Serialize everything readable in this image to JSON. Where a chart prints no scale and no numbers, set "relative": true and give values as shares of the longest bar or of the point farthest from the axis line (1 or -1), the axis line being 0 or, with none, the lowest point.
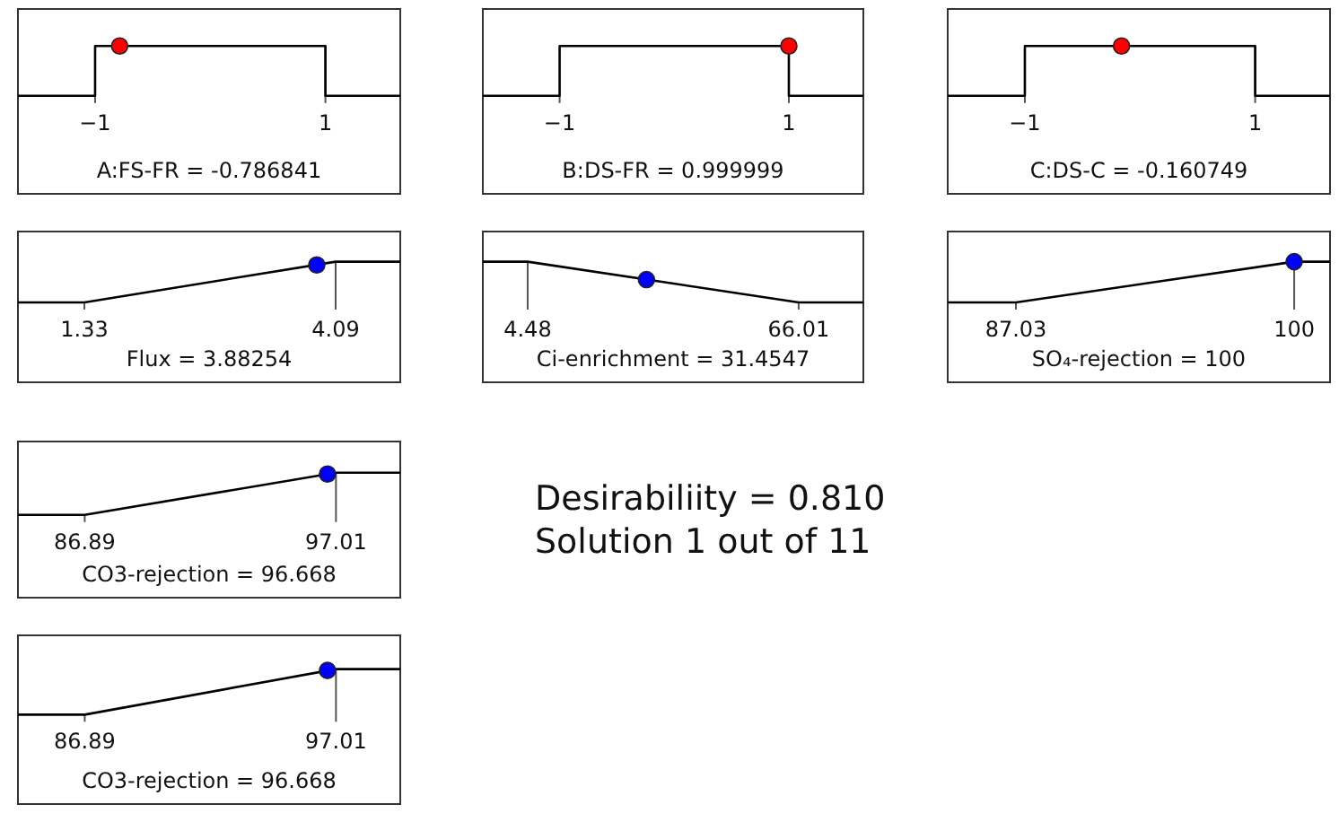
{
  "chart_data": [
    {
      "type": "line",
      "xlabel": "A:FS-FR = -0.786841",
      "xlim": [
        -1.67,
        1.65
      ],
      "xticks": [
        -1,
        1
      ],
      "relative": true,
      "tick_labels": "x",
      "series": [
        {
          "color": "#000000",
          "x": [
            -1.67,
            -1,
            -1,
            1,
            1,
            1.65
          ],
          "values": [
            0,
            0,
            1,
            1,
            0,
            0
          ]
        },
        {
          "type": "scatter",
          "marker": "circle",
          "color": "#ff0000",
          "x": [
            -0.786841
          ],
          "values": [
            1
          ]
        }
      ]
    },
    {
      "type": "line",
      "xlabel": "B:DS-FR = 0.999999",
      "xlim": [
        -1.67,
        1.65
      ],
      "xticks": [
        -1,
        1
      ],
      "relative": true,
      "tick_labels": "x",
      "series": [
        {
          "color": "#000000",
          "x": [
            -1.67,
            -1,
            -1,
            1,
            1,
            1.65
          ],
          "values": [
            0,
            0,
            1,
            1,
            0,
            0
          ]
        },
        {
          "type": "scatter",
          "marker": "circle",
          "color": "#ff0000",
          "x": [
            0.999999
          ],
          "values": [
            1
          ]
        }
      ]
    },
    {
      "type": "line",
      "xlabel": "C:DS-C = -0.160749",
      "xlim": [
        -1.67,
        1.65
      ],
      "xticks": [
        -1,
        1
      ],
      "relative": true,
      "tick_labels": "x",
      "series": [
        {
          "color": "#000000",
          "x": [
            -1.67,
            -1,
            -1,
            1,
            1,
            1.65
          ],
          "values": [
            0,
            0,
            1,
            1,
            0,
            0
          ]
        },
        {
          "type": "scatter",
          "marker": "circle",
          "color": "#ff0000",
          "x": [
            -0.160749
          ],
          "values": [
            1
          ]
        }
      ]
    },
    {
      "type": "line",
      "xlabel": "Flux = 3.88254",
      "xlim": [
        0.6,
        4.8
      ],
      "xticks": [
        1.33,
        4.09
      ],
      "relative": true,
      "tick_labels": "x",
      "series": [
        {
          "color": "#000000",
          "x": [
            0.6,
            1.33,
            4.09,
            4.8
          ],
          "values": [
            0,
            0,
            1,
            1
          ]
        },
        {
          "type": "scatter",
          "marker": "circle",
          "color": "#0000ff",
          "x": [
            3.88254
          ],
          "values": [
            0.92
          ]
        }
      ]
    },
    {
      "type": "line",
      "xlabel": "Ci-enrichment = 31.4547",
      "xlim": [
        -5.7,
        80.7
      ],
      "xticks": [
        4.48,
        66.01
      ],
      "relative": true,
      "tick_labels": "x",
      "series": [
        {
          "color": "#000000",
          "x": [
            -5.7,
            4.48,
            66.01,
            80.7
          ],
          "values": [
            1,
            1,
            0,
            0
          ]
        },
        {
          "type": "scatter",
          "marker": "circle",
          "color": "#0000ff",
          "x": [
            31.4547
          ],
          "values": [
            0.56
          ]
        }
      ]
    },
    {
      "type": "line",
      "xlabel": "SO₄-rejection = 100",
      "xlim": [
        83.85,
        101.67
      ],
      "xticks": [
        87.03,
        100
      ],
      "relative": true,
      "tick_labels": "x",
      "series": [
        {
          "color": "#000000",
          "x": [
            83.85,
            87.03,
            100,
            101.67
          ],
          "values": [
            0,
            0,
            1,
            1
          ]
        },
        {
          "type": "scatter",
          "marker": "circle",
          "color": "#0000ff",
          "x": [
            100
          ],
          "values": [
            1
          ]
        }
      ]
    },
    {
      "type": "line",
      "xlabel": "CO3-rejection = 96.668",
      "xlim": [
        84.2,
        99.6
      ],
      "xticks": [
        86.89,
        97.01
      ],
      "relative": true,
      "tick_labels": "x",
      "series": [
        {
          "color": "#000000",
          "x": [
            84.2,
            86.89,
            97.01,
            99.6
          ],
          "values": [
            0,
            0,
            1,
            1
          ]
        },
        {
          "type": "scatter",
          "marker": "circle",
          "color": "#0000ff",
          "x": [
            96.668
          ],
          "values": [
            0.97
          ]
        }
      ]
    },
    {
      "type": "other",
      "annotations": [
        "Desirabiliity = 0.810",
        "Solution 1 out of 11"
      ]
    },
    {
      "type": "line",
      "xlabel": "CO3-rejection = 96.668",
      "xlim": [
        84.2,
        99.6
      ],
      "xticks": [
        86.89,
        97.01
      ],
      "relative": true,
      "tick_labels": "x",
      "series": [
        {
          "color": "#000000",
          "x": [
            84.2,
            86.89,
            97.01,
            99.6
          ],
          "values": [
            0,
            0,
            1,
            1
          ]
        },
        {
          "type": "scatter",
          "marker": "circle",
          "color": "#0000ff",
          "x": [
            96.668
          ],
          "values": [
            0.97
          ]
        }
      ]
    }
  ]
}
